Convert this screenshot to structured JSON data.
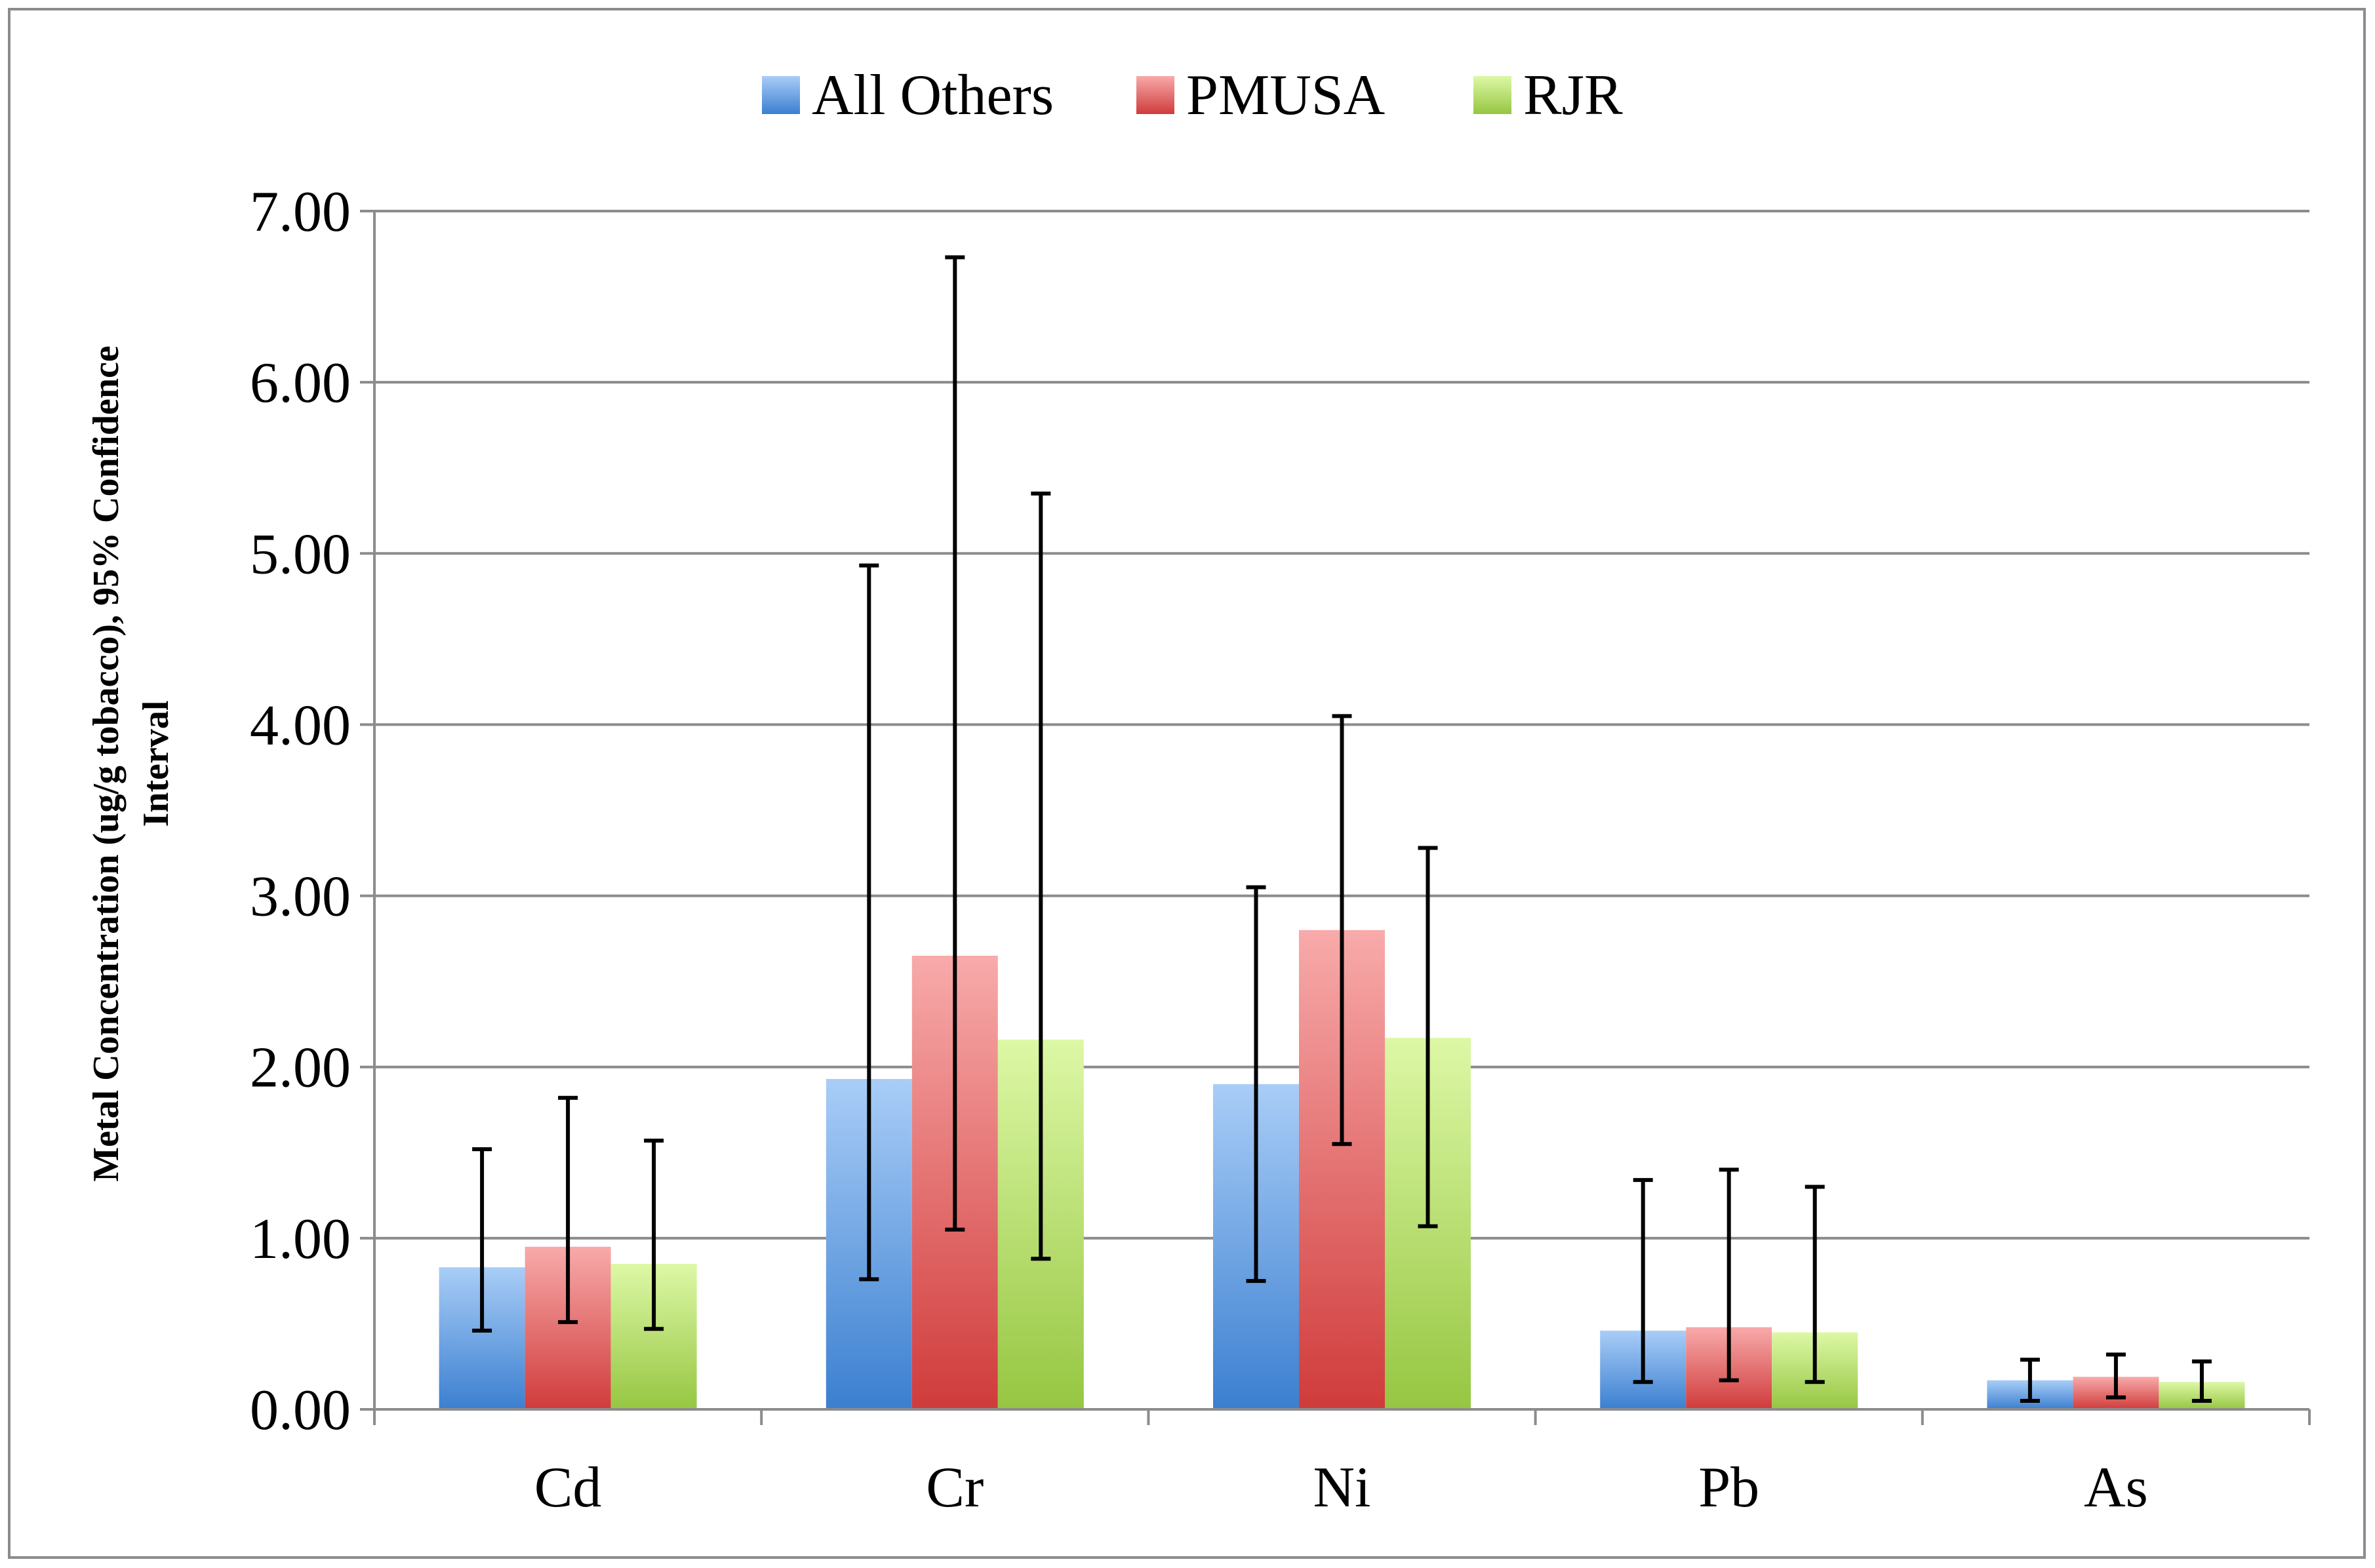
{
  "chart_data": {
    "type": "bar",
    "title": "",
    "xlabel": "",
    "ylabel": "Metal Concentration (ug/g tobacco), 95% Confidence Interval",
    "ylabel_lines": [
      "Metal Concentration (ug/g tobacco), 95% Confidence",
      "Interval"
    ],
    "ylim": [
      0,
      7
    ],
    "yticks": [
      0,
      1,
      2,
      3,
      4,
      5,
      6,
      7
    ],
    "ytick_labels": [
      "0.00",
      "1.00",
      "2.00",
      "3.00",
      "4.00",
      "5.00",
      "6.00",
      "7.00"
    ],
    "grid": true,
    "legend": "top-center",
    "categories": [
      "Cd",
      "Cr",
      "Ni",
      "Pb",
      "As"
    ],
    "series": [
      {
        "name": "All Others",
        "color_top": "#a9cdf7",
        "color_bottom": "#3b7fd0",
        "values": [
          0.83,
          1.93,
          1.9,
          0.46,
          0.17
        ],
        "ci_low": [
          0.46,
          0.76,
          0.75,
          0.16,
          0.05
        ],
        "ci_high": [
          1.52,
          4.93,
          3.05,
          1.34,
          0.29
        ]
      },
      {
        "name": "PMUSA",
        "color_top": "#f8aaaa",
        "color_bottom": "#d03b3b",
        "values": [
          0.95,
          2.65,
          2.8,
          0.48,
          0.19
        ],
        "ci_low": [
          0.51,
          1.05,
          1.55,
          0.17,
          0.07
        ],
        "ci_high": [
          1.82,
          6.73,
          4.05,
          1.4,
          0.32
        ]
      },
      {
        "name": "RJR",
        "color_top": "#ddf8a6",
        "color_bottom": "#96c642",
        "values": [
          0.85,
          2.16,
          2.17,
          0.45,
          0.16
        ],
        "ci_low": [
          0.47,
          0.88,
          1.07,
          0.16,
          0.05
        ],
        "ci_high": [
          1.57,
          5.35,
          3.28,
          1.3,
          0.28
        ]
      }
    ]
  },
  "colors": {
    "grid": "#8c8c8c",
    "axis": "#8c8c8c",
    "errorbar": "#000000"
  }
}
